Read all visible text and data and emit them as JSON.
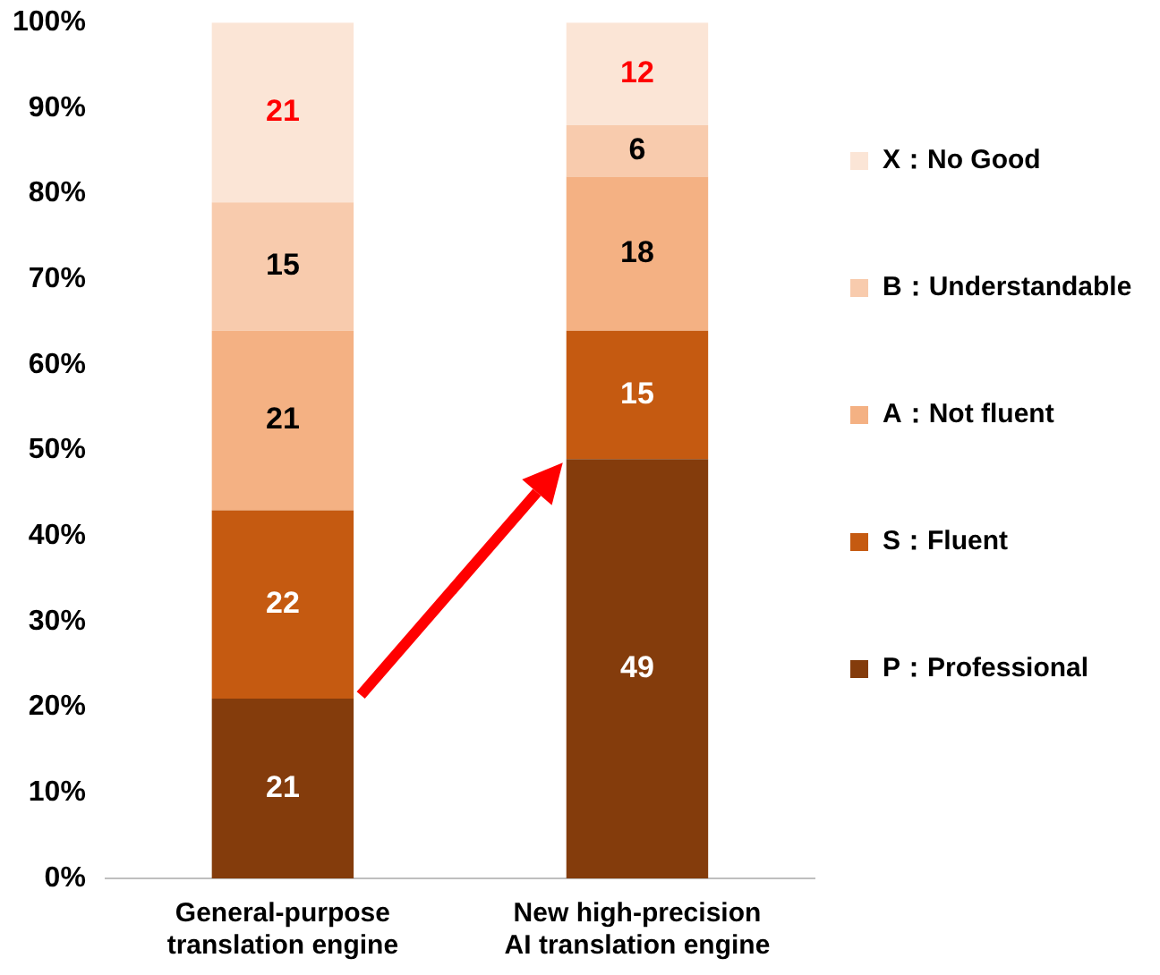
{
  "chart_data": {
    "type": "bar",
    "stacked": true,
    "categories": [
      "General-purpose\ntranslation engine",
      "New high-precision\nAI translation engine"
    ],
    "series": [
      {
        "name": "P：Professional",
        "color": "#843c0c",
        "values": [
          21,
          49
        ]
      },
      {
        "name": "S：Fluent",
        "color": "#c55a11",
        "values": [
          22,
          15
        ]
      },
      {
        "name": "A：Not fluent",
        "color": "#f4b183",
        "values": [
          21,
          18
        ]
      },
      {
        "name": "B：Understandable",
        "color": "#f8cbad",
        "values": [
          15,
          6
        ]
      },
      {
        "name": "X：No Good",
        "color": "#fbe5d6",
        "values": [
          21,
          12
        ]
      }
    ],
    "ylim": [
      0,
      100
    ],
    "yticks": [
      {
        "value": 0,
        "label": "0%"
      },
      {
        "value": 10,
        "label": "10%"
      },
      {
        "value": 20,
        "label": "20%"
      },
      {
        "value": 30,
        "label": "30%"
      },
      {
        "value": 40,
        "label": "40%"
      },
      {
        "value": 50,
        "label": "50%"
      },
      {
        "value": 60,
        "label": "60%"
      },
      {
        "value": 70,
        "label": "70%"
      },
      {
        "value": 80,
        "label": "80%"
      },
      {
        "value": 90,
        "label": "90%"
      },
      {
        "value": 100,
        "label": "100%"
      }
    ],
    "data_labels": true,
    "legend": "right"
  }
}
